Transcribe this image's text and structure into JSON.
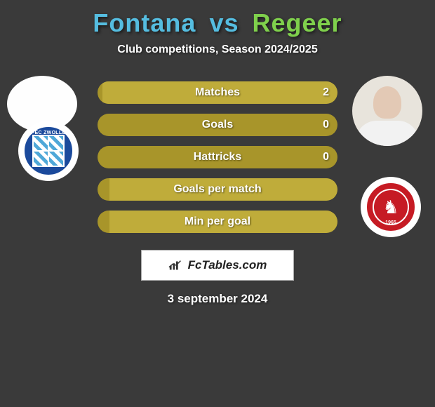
{
  "header": {
    "player1": "Fontana",
    "vs": "vs",
    "player2": "Regeer",
    "subtitle": "Club competitions, Season 2024/2025",
    "player1_color": "#55bde0",
    "player2_color": "#7fd04c"
  },
  "stats": {
    "rows": [
      {
        "label": "Matches",
        "left": "",
        "right": "2",
        "fill_left_pct": 0,
        "fill_right_pct": 98
      },
      {
        "label": "Goals",
        "left": "",
        "right": "0",
        "fill_left_pct": 0,
        "fill_right_pct": 0
      },
      {
        "label": "Hattricks",
        "left": "",
        "right": "0",
        "fill_left_pct": 0,
        "fill_right_pct": 0
      },
      {
        "label": "Goals per match",
        "left": "",
        "right": "",
        "fill_left_pct": 0,
        "fill_right_pct": 95
      },
      {
        "label": "Min per goal",
        "left": "",
        "right": "",
        "fill_left_pct": 0,
        "fill_right_pct": 95
      }
    ],
    "bar_bg": "#a8952a",
    "bar_fill": "#bfac3a",
    "bar_radius": 16
  },
  "clubs": {
    "left_name": "PEC ZWOLLE",
    "right_year": "1965"
  },
  "source": {
    "text": "FcTables.com"
  },
  "footer": {
    "date": "3 september 2024"
  },
  "theme": {
    "background": "#3a3a3a"
  }
}
